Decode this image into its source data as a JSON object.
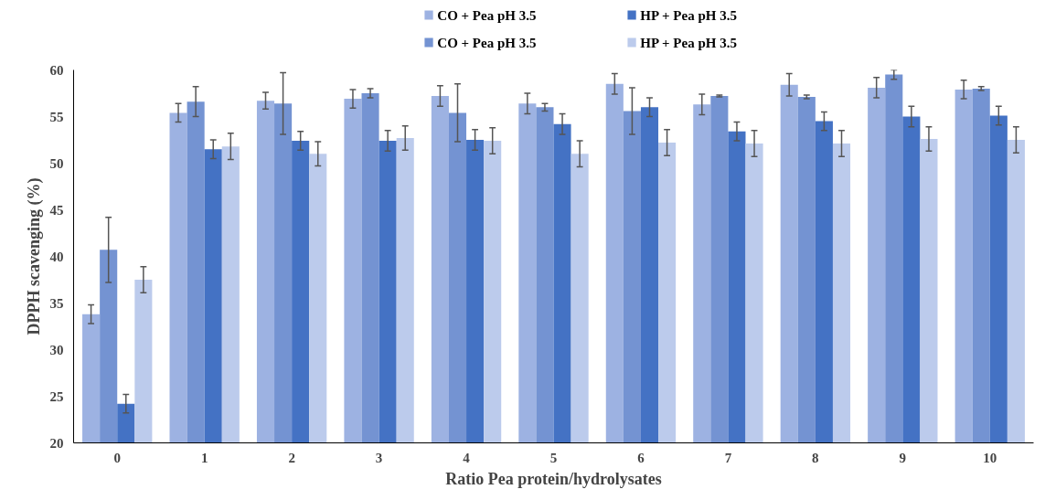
{
  "chart_data": {
    "type": "bar",
    "xlabel": "Ratio Pea protein/hydrolysates",
    "ylabel": "DPPH scavenging (%)",
    "categories": [
      "0",
      "1",
      "2",
      "3",
      "4",
      "5",
      "6",
      "7",
      "8",
      "9",
      "10"
    ],
    "series": [
      {
        "name": "CO + Pea pH 3.5",
        "color": "#9db2e2",
        "values": [
          33.8,
          55.4,
          56.7,
          56.9,
          57.2,
          56.4,
          58.5,
          56.3,
          58.4,
          58.1,
          57.9
        ],
        "errors": [
          1.0,
          1.0,
          0.9,
          1.0,
          1.1,
          1.1,
          1.1,
          1.1,
          1.2,
          1.1,
          1.0
        ]
      },
      {
        "name": "CO + Pea pH 3.5",
        "color": "#7493d2",
        "values": [
          40.7,
          56.6,
          56.4,
          57.5,
          55.4,
          56.0,
          55.6,
          57.2,
          57.1,
          59.5,
          58.0
        ],
        "errors": [
          3.5,
          1.6,
          3.3,
          0.5,
          3.1,
          0.4,
          2.5,
          0.1,
          0.2,
          0.5,
          0.2
        ]
      },
      {
        "name": "HP + Pea pH 3.5",
        "color": "#4472c4",
        "values": [
          24.2,
          51.5,
          52.4,
          52.4,
          52.5,
          54.2,
          56.0,
          53.4,
          54.5,
          55.0,
          55.1
        ],
        "errors": [
          1.0,
          1.0,
          1.0,
          1.1,
          1.1,
          1.1,
          1.0,
          1.0,
          1.0,
          1.1,
          1.0
        ]
      },
      {
        "name": "HP + Pea pH 3.5",
        "color": "#bccbec",
        "values": [
          37.5,
          51.8,
          51.0,
          52.7,
          52.4,
          51.0,
          52.2,
          52.1,
          52.1,
          52.6,
          52.5
        ],
        "errors": [
          1.4,
          1.4,
          1.3,
          1.3,
          1.4,
          1.4,
          1.4,
          1.4,
          1.4,
          1.3,
          1.4
        ]
      }
    ],
    "ylim": [
      20,
      60
    ],
    "yticks": [
      20,
      25,
      30,
      35,
      40,
      45,
      50,
      55,
      60
    ],
    "grid": false,
    "legend": "top"
  }
}
